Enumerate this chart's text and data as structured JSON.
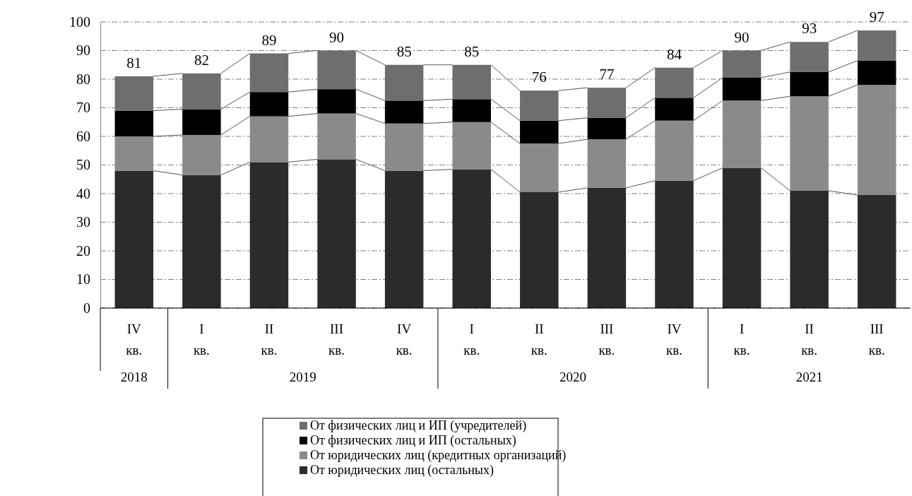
{
  "chart_data": {
    "type": "bar",
    "stacked": true,
    "categories": [
      "IV кв.",
      "I кв.",
      "II кв.",
      "III кв.",
      "IV кв.",
      "I кв.",
      "II кв.",
      "III кв.",
      "IV кв.",
      "I кв.",
      "II кв.",
      "III кв."
    ],
    "series": [
      {
        "name": "От юридических лиц (остальных)",
        "color": "#2b2b2b",
        "values": [
          48,
          46.5,
          51,
          52,
          48,
          48.5,
          40.5,
          42,
          44.5,
          49,
          41,
          39.5
        ]
      },
      {
        "name": "От юридических лиц (кредитных организаций)",
        "color": "#8a8a8a",
        "values": [
          12,
          14,
          16,
          16,
          16.5,
          16.5,
          17,
          17,
          21,
          23.5,
          33,
          38.5
        ]
      },
      {
        "name": "От физических лиц и ИП (остальных)",
        "color": "#000000",
        "values": [
          9,
          9,
          8.5,
          8.5,
          8,
          8,
          8,
          7.5,
          8,
          8,
          8.5,
          8.5
        ]
      },
      {
        "name": "От физических лиц и ИП (учредителей)",
        "color": "#6e6e6e",
        "values": [
          12,
          12.5,
          13.5,
          13.5,
          12.5,
          12,
          10.5,
          10.5,
          10.5,
          9.5,
          10.5,
          10.5
        ]
      }
    ],
    "totals": [
      "81",
      "82",
      "89",
      "90",
      "85",
      "85",
      "76",
      "77",
      "84",
      "90",
      "93",
      "97"
    ],
    "ylim": [
      0,
      100
    ],
    "yticks": [
      0,
      10,
      20,
      30,
      40,
      50,
      60,
      70,
      80,
      90,
      100
    ],
    "grid": "y",
    "legend": "bottom",
    "annotations": [
      "2018",
      "2019",
      "2020",
      "2021"
    ]
  }
}
